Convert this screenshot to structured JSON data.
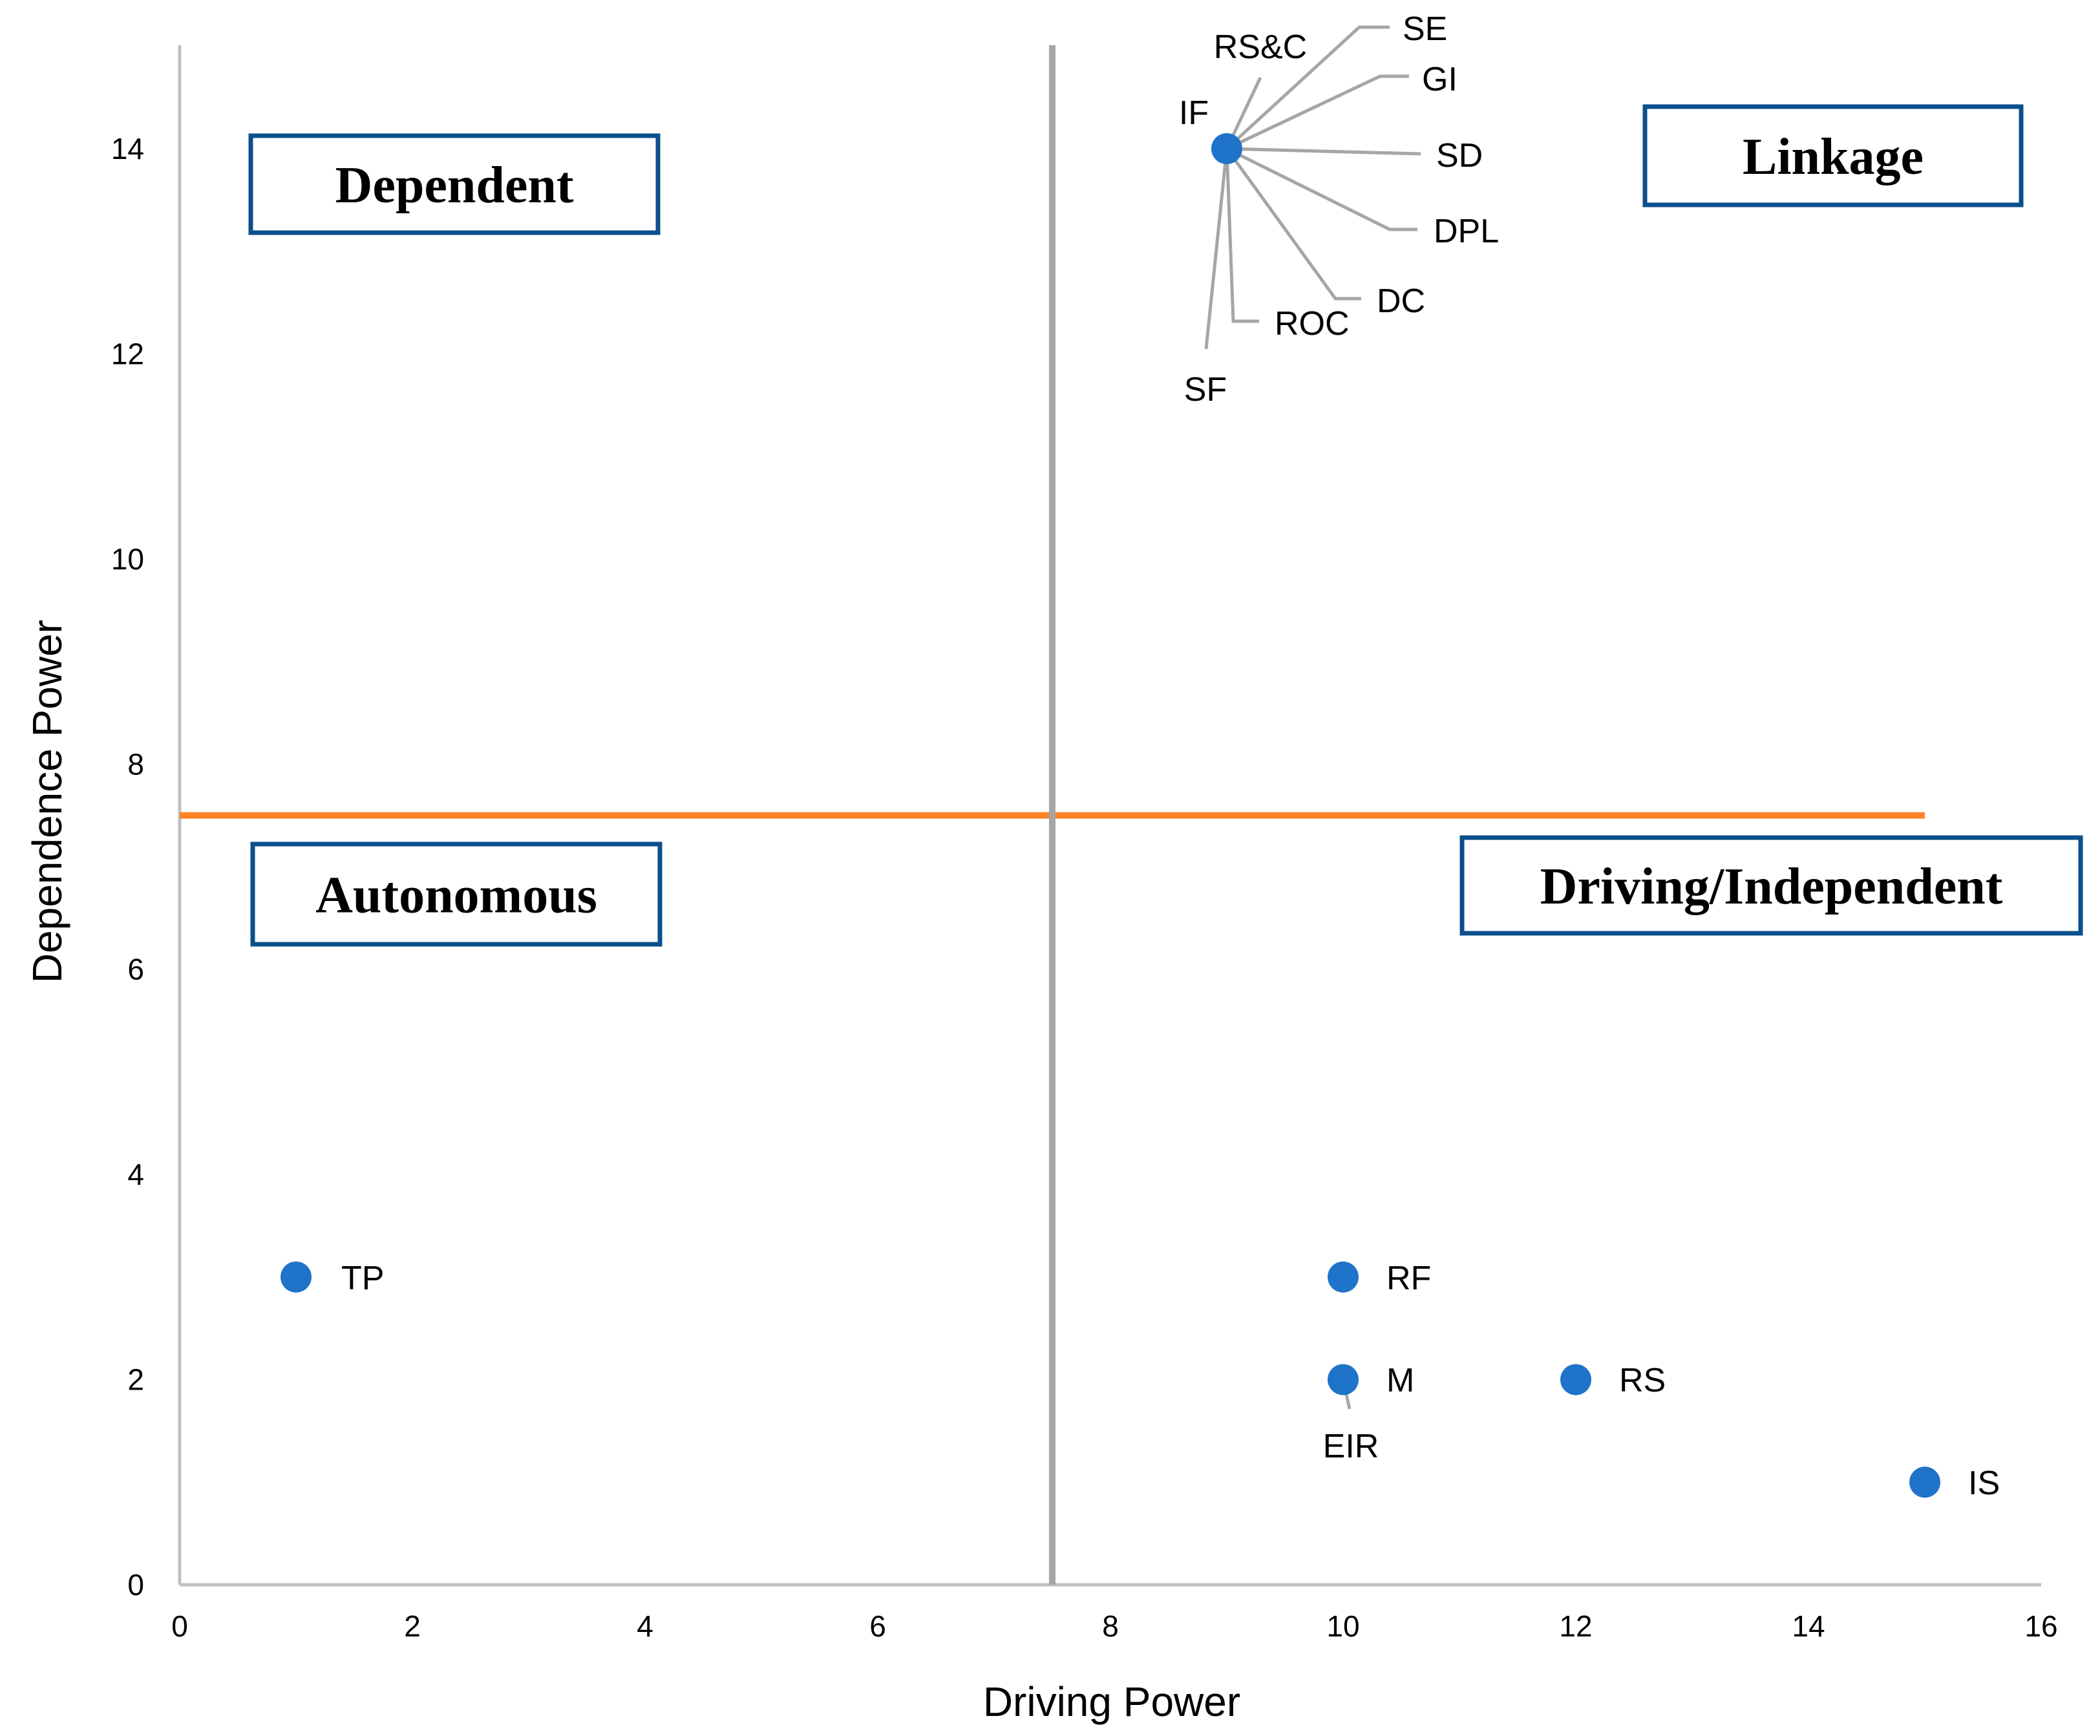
{
  "chart_data": {
    "type": "scatter",
    "title": "",
    "xlabel": "Driving Power",
    "ylabel": "Dependence Power",
    "xlim": [
      0,
      16
    ],
    "ylim": [
      0,
      15
    ],
    "x_ticks": [
      0,
      2,
      4,
      6,
      8,
      10,
      12,
      14,
      16
    ],
    "y_ticks": [
      0,
      2,
      4,
      6,
      8,
      10,
      12,
      14
    ],
    "threshold_x": 7.5,
    "threshold_y": 7.5,
    "colors": {
      "points": "#1f73c8",
      "leader_lines": "#a6a6a6",
      "horizontal_divider": "#ff8326",
      "vertical_divider": "#a6a6a6",
      "axis": "#bfbfbf",
      "quadrant_border": "#0b4f8c"
    },
    "quadrants": [
      {
        "label": "Dependent",
        "position": "top-left"
      },
      {
        "label": "Linkage",
        "position": "top-right"
      },
      {
        "label": "Autonomous",
        "position": "bottom-left"
      },
      {
        "label": "Driving/Independent",
        "position": "bottom-right"
      }
    ],
    "points": [
      {
        "label": "IF",
        "x": 9,
        "y": 14
      },
      {
        "label": "RS&C",
        "x": 9,
        "y": 14
      },
      {
        "label": "SE",
        "x": 9,
        "y": 14
      },
      {
        "label": "GI",
        "x": 9,
        "y": 14
      },
      {
        "label": "SD",
        "x": 9,
        "y": 14
      },
      {
        "label": "DPL",
        "x": 9,
        "y": 14
      },
      {
        "label": "DC",
        "x": 9,
        "y": 14
      },
      {
        "label": "ROC",
        "x": 9,
        "y": 14
      },
      {
        "label": "SF",
        "x": 9,
        "y": 14
      },
      {
        "label": "TP",
        "x": 1,
        "y": 3
      },
      {
        "label": "RF",
        "x": 10,
        "y": 3
      },
      {
        "label": "M",
        "x": 10,
        "y": 2
      },
      {
        "label": "EIR",
        "x": 10,
        "y": 2
      },
      {
        "label": "RS",
        "x": 12,
        "y": 2
      },
      {
        "label": "IS",
        "x": 15,
        "y": 1
      }
    ]
  }
}
